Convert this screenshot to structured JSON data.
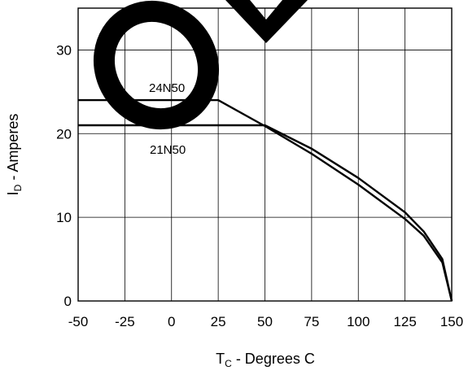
{
  "chart_data": {
    "type": "line",
    "xlabel": {
      "main": "T",
      "sub": "C",
      "rest": " - Degrees C"
    },
    "ylabel": {
      "main": "I",
      "sub": "D",
      "rest": " - Amperes"
    },
    "xlim": [
      -50,
      150
    ],
    "ylim": [
      0,
      35
    ],
    "x_ticks": [
      "-50",
      "-25",
      "0",
      "25",
      "50",
      "75",
      "100",
      "125",
      "150"
    ],
    "y_ticks": [
      "0",
      "10",
      "20",
      "30"
    ],
    "y_tick_values": [
      0,
      10,
      20,
      30
    ],
    "grid": true,
    "series": [
      {
        "name": "24N50",
        "x": [
          -50,
          25,
          50,
          75,
          100,
          125,
          135,
          145,
          150
        ],
        "y": [
          24,
          24,
          20.9,
          17.6,
          13.9,
          9.8,
          7.8,
          4.6,
          0
        ]
      },
      {
        "name": "21N50",
        "x": [
          -50,
          41,
          50,
          75,
          100,
          125,
          135,
          145,
          150
        ],
        "y": [
          21,
          21,
          21,
          18.2,
          14.7,
          10.6,
          8.3,
          5.0,
          0
        ]
      }
    ],
    "curve_labels": [
      "24N50",
      "21N50"
    ]
  },
  "watermark": {
    "color": "#000000"
  }
}
